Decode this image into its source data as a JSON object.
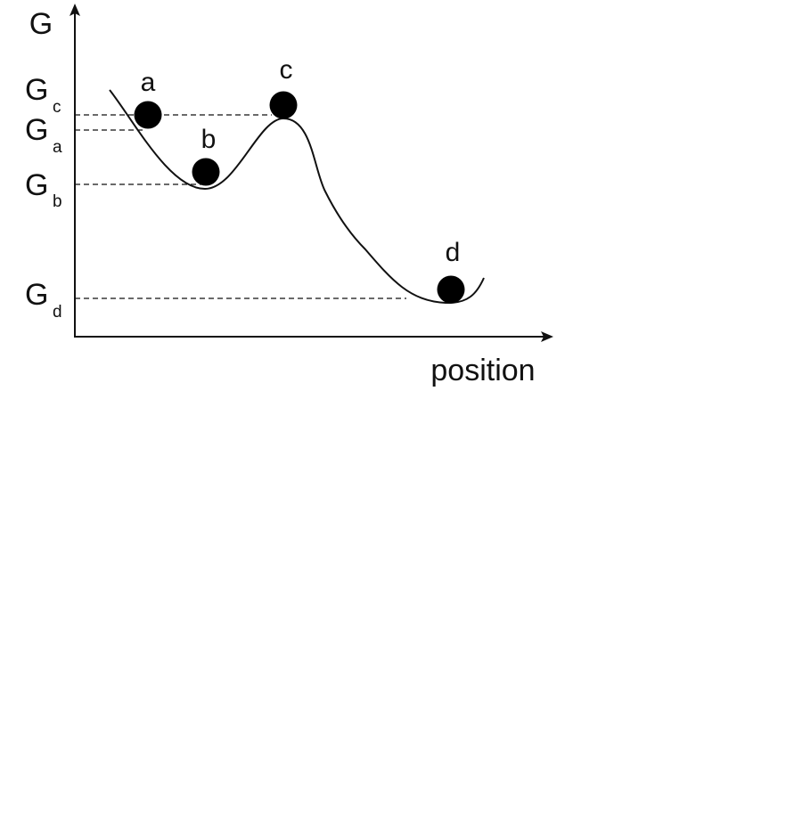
{
  "axes": {
    "y_label": "G",
    "x_label": "position"
  },
  "levels": [
    {
      "symbol": "G",
      "subscript": "c"
    },
    {
      "symbol": "G",
      "subscript": "a"
    },
    {
      "symbol": "G",
      "subscript": "b"
    },
    {
      "symbol": "G",
      "subscript": "d"
    }
  ],
  "states": [
    {
      "label": "a"
    },
    {
      "label": "b"
    },
    {
      "label": "c"
    },
    {
      "label": "d"
    }
  ]
}
